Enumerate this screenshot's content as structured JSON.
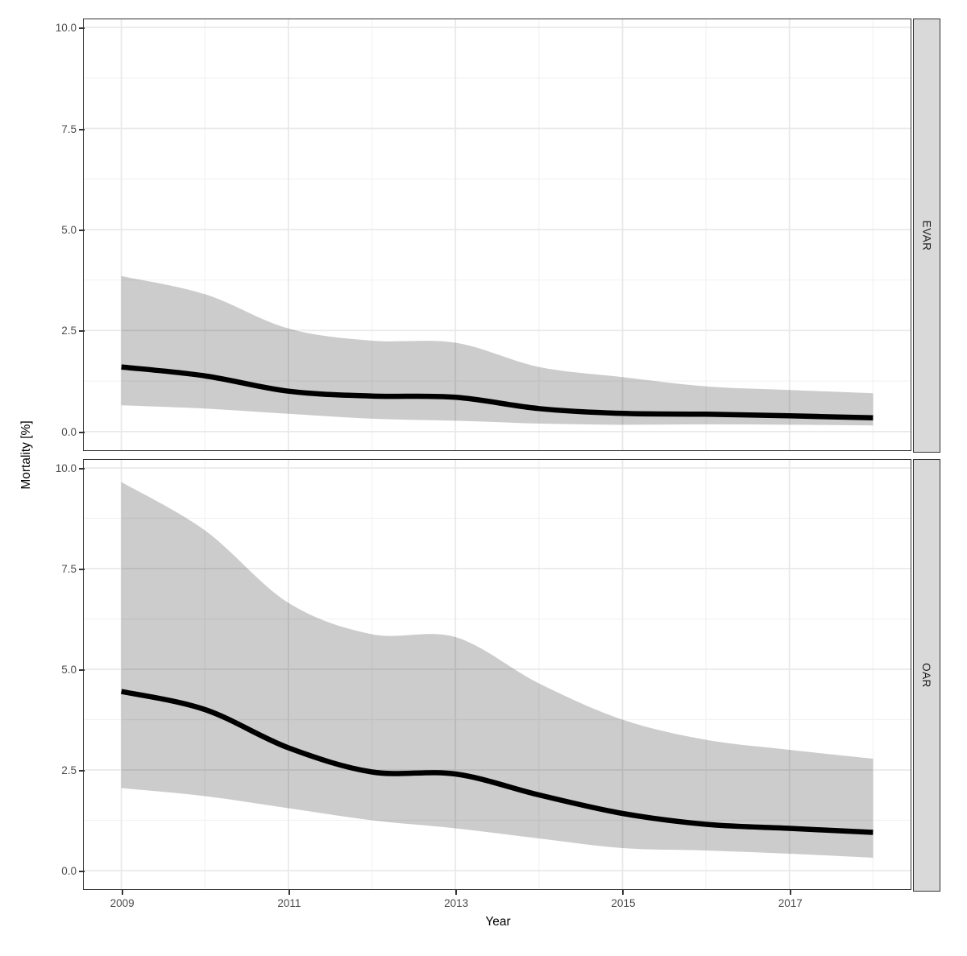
{
  "figure": {
    "y_axis_title": "Mortality [%]",
    "x_axis_title": "Year",
    "facets": [
      "EVAR",
      "OAR"
    ],
    "x_tick_labels": [
      "2009",
      "2011",
      "2013",
      "2015",
      "2017"
    ],
    "y_tick_labels": [
      "0.0",
      "2.5",
      "5.0",
      "7.5",
      "10.0"
    ],
    "colors": {
      "line": "#000000",
      "ribbon_fill": "#cccccc",
      "strip_fill": "#d9d9d9",
      "panel_border": "#333333",
      "grid_major": "#e9e9e9",
      "grid_minor": "#f2f2f2",
      "tick_label": "#4d4d4d",
      "tick_mark": "#333333"
    }
  },
  "chart_data": [
    {
      "type": "line",
      "facet": "EVAR",
      "x": [
        2009,
        2010,
        2011,
        2012,
        2013,
        2014,
        2015,
        2016,
        2017,
        2018
      ],
      "series": [
        {
          "name": "estimate",
          "values": [
            1.6,
            1.38,
            1.0,
            0.88,
            0.85,
            0.57,
            0.45,
            0.43,
            0.39,
            0.34
          ]
        },
        {
          "name": "ci_lower",
          "values": [
            0.65,
            0.57,
            0.44,
            0.32,
            0.27,
            0.2,
            0.17,
            0.18,
            0.17,
            0.15
          ]
        },
        {
          "name": "ci_upper",
          "values": [
            3.85,
            3.4,
            2.55,
            2.25,
            2.2,
            1.6,
            1.35,
            1.12,
            1.03,
            0.95
          ]
        }
      ],
      "xlabel": "Year",
      "ylabel": "Mortality [%]",
      "xlim": [
        2009,
        2018
      ],
      "ylim": [
        0,
        10
      ],
      "x_ticks": [
        2009,
        2011,
        2013,
        2015,
        2017
      ],
      "y_ticks": [
        0,
        2.5,
        5,
        7.5,
        10
      ],
      "grid": true,
      "legend": false
    },
    {
      "type": "line",
      "facet": "OAR",
      "x": [
        2009,
        2010,
        2011,
        2012,
        2013,
        2014,
        2015,
        2016,
        2017,
        2018
      ],
      "series": [
        {
          "name": "estimate",
          "values": [
            4.45,
            4.0,
            3.05,
            2.45,
            2.4,
            1.88,
            1.42,
            1.15,
            1.05,
            0.95
          ]
        },
        {
          "name": "ci_lower",
          "values": [
            2.05,
            1.85,
            1.55,
            1.25,
            1.05,
            0.8,
            0.56,
            0.5,
            0.42,
            0.32
          ]
        },
        {
          "name": "ci_upper",
          "values": [
            9.65,
            8.45,
            6.65,
            5.87,
            5.8,
            4.65,
            3.75,
            3.25,
            3.0,
            2.78
          ]
        }
      ],
      "xlabel": "Year",
      "ylabel": "Mortality [%]",
      "xlim": [
        2009,
        2018
      ],
      "ylim": [
        0,
        10
      ],
      "x_ticks": [
        2009,
        2011,
        2013,
        2015,
        2017
      ],
      "y_ticks": [
        0,
        2.5,
        5,
        7.5,
        10
      ],
      "grid": true,
      "legend": false
    }
  ]
}
